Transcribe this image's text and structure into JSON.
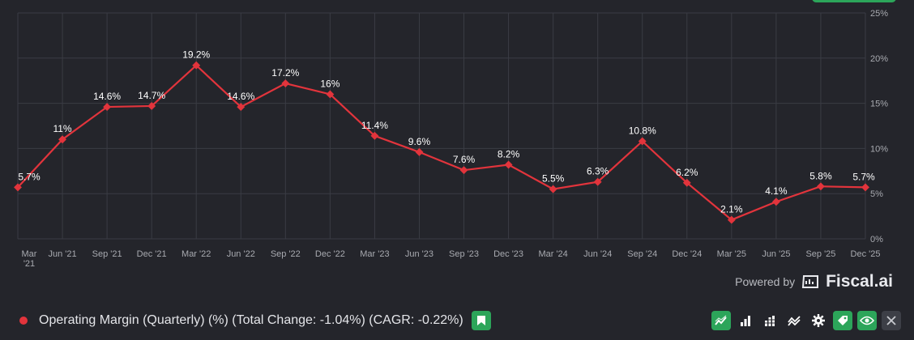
{
  "chart_data": {
    "type": "line",
    "title": "Operating Margin (Quarterly) (%)",
    "categories": [
      "Mar '21",
      "Jun '21",
      "Sep '21",
      "Dec '21",
      "Mar '22",
      "Jun '22",
      "Sep '22",
      "Dec '22",
      "Mar '23",
      "Jun '23",
      "Sep '23",
      "Dec '23",
      "Mar '24",
      "Jun '24",
      "Sep '24",
      "Dec '24",
      "Mar '25",
      "Jun '25",
      "Sep '25",
      "Dec '25"
    ],
    "values": [
      5.7,
      11,
      14.6,
      14.7,
      19.2,
      14.6,
      17.2,
      16,
      11.4,
      9.6,
      7.6,
      8.2,
      5.5,
      6.3,
      10.8,
      6.2,
      2.1,
      4.1,
      5.8,
      5.7
    ],
    "value_labels": [
      "5.7%",
      "11%",
      "14.6%",
      "14.7%",
      "19.2%",
      "14.6%",
      "17.2%",
      "16%",
      "11.4%",
      "9.6%",
      "7.6%",
      "8.2%",
      "5.5%",
      "6.3%",
      "10.8%",
      "6.2%",
      "2.1%",
      "4.1%",
      "5.8%",
      "5.7%"
    ],
    "x_tick_labels": [
      "Mar\n'21",
      "Jun '21",
      "Sep '21",
      "Dec '21",
      "Mar '22",
      "Jun '22",
      "Sep '22",
      "Dec '22",
      "Mar '23",
      "Jun '23",
      "Sep '23",
      "Dec '23",
      "Mar '24",
      "Jun '24",
      "Sep '24",
      "Dec '24",
      "Mar '25",
      "Jun '25",
      "Sep '25",
      "Dec '25"
    ],
    "ylim": [
      0,
      25
    ],
    "y_ticks": [
      0,
      5,
      10,
      15,
      20,
      25
    ],
    "y_tick_labels": [
      "0%",
      "5%",
      "10%",
      "15%",
      "20%",
      "25%"
    ],
    "line_color": "#e2343c",
    "grid_color": "#3a3c44"
  },
  "footer": {
    "legend_label": "Operating Margin (Quarterly) (%) (Total Change: -1.04%) (CAGR: -0.22%)",
    "legend_color": "#e2343c"
  },
  "branding": {
    "powered_by": "Powered by",
    "brand": "Fiscal.ai"
  },
  "toolbar": {
    "buttons": [
      "line-chart-icon",
      "bar-chart-icon",
      "stacked-bar-icon",
      "trend-icon",
      "gear-icon",
      "tag-icon",
      "eye-icon",
      "close-icon"
    ]
  }
}
